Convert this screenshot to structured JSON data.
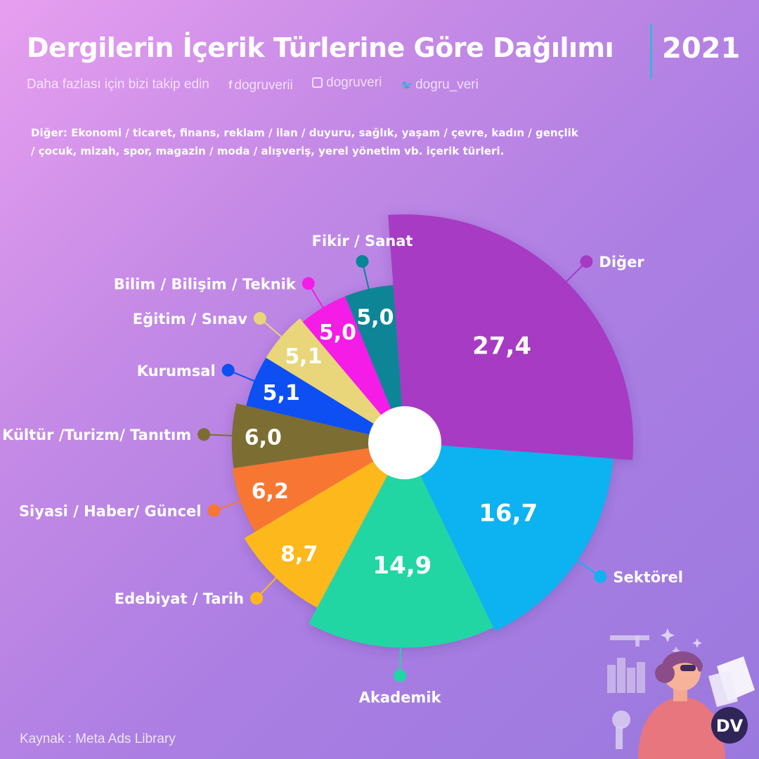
{
  "header": {
    "title": "Dergilerin İçerik Türlerine Göre Dağılımı",
    "year": "2021",
    "follow_text": "Daha fazlası için bizi takip edin",
    "social": [
      {
        "icon": "facebook-icon",
        "glyph": "f",
        "handle": "dogruverii"
      },
      {
        "icon": "instagram-icon",
        "glyph": "",
        "handle": "dogruveri"
      },
      {
        "icon": "twitter-icon",
        "glyph": "🐦",
        "handle": "dogru_veri"
      }
    ]
  },
  "note": "Diğer: Ekonomi / ticaret, finans, reklam / ilan / duyuru, sağlık, yaşam / çevre, kadın / gençlik / çocuk, mizah, spor, magazin / moda / alışveriş, yerel yönetim vb. içerik türleri.",
  "source": "Kaynak : Meta Ads Library",
  "logo_text": "DV",
  "chart_data": {
    "type": "pie",
    "variant": "rose",
    "slices": [
      {
        "label": "Diğer",
        "value": 27.4,
        "display": "27,4",
        "color": "#a73ac3"
      },
      {
        "label": "Sektörel",
        "value": 16.7,
        "display": "16,7",
        "color": "#0fb2f0"
      },
      {
        "label": "Akademik",
        "value": 14.9,
        "display": "14,9",
        "color": "#20d6a4"
      },
      {
        "label": "Edebiyat / Tarih",
        "value": 8.7,
        "display": "8,7",
        "color": "#fdb81c"
      },
      {
        "label": "Siyasi / Haber/ Güncel",
        "value": 6.2,
        "display": "6,2",
        "color": "#f77733"
      },
      {
        "label": "Kültür /Turizm/ Tanıtım",
        "value": 6.0,
        "display": "6,0",
        "color": "#7b6d33"
      },
      {
        "label": "Kurumsal",
        "value": 5.1,
        "display": "5,1",
        "color": "#0b50f2"
      },
      {
        "label": "Eğitim / Sınav",
        "value": 5.1,
        "display": "5,1",
        "color": "#e9d57a"
      },
      {
        "label": "Bilim / Bilişim / Teknik",
        "value": 5.0,
        "display": "5,0",
        "color": "#f41ce6"
      },
      {
        "label": "Fikir / Sanat",
        "value": 5.0,
        "display": "5,0",
        "color": "#088597"
      }
    ]
  }
}
